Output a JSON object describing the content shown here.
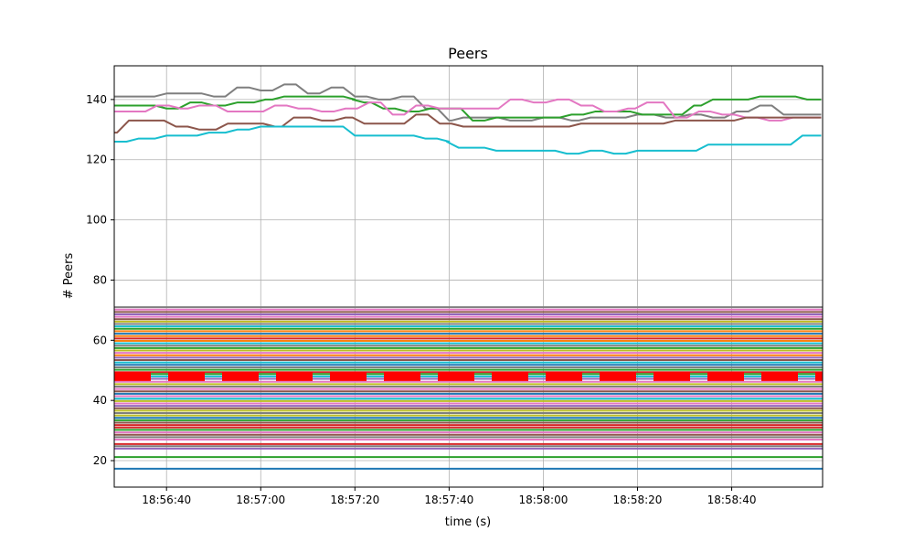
{
  "chart_data": {
    "type": "line",
    "title": "Peers",
    "xlabel": "time (s)",
    "ylabel": "# Peers",
    "xlim": [
      "18:56:28.9",
      "18:58:59.3"
    ],
    "ylim": [
      11.2,
      151.2
    ],
    "grid": true,
    "x_ticks": [
      "18:56:40",
      "18:57:00",
      "18:57:20",
      "18:57:40",
      "18:58:00",
      "18:58:20",
      "18:58:40"
    ],
    "y_ticks": [
      20,
      40,
      60,
      80,
      100,
      120,
      140
    ],
    "upper_series": [
      {
        "color": "#7f7f7f",
        "points": [
          [
            "18:56:29",
            141
          ],
          [
            "18:56:40",
            142
          ],
          [
            "18:56:50",
            141
          ],
          [
            "18:56:55",
            144
          ],
          [
            "18:57:00",
            143
          ],
          [
            "18:57:05",
            145
          ],
          [
            "18:57:10",
            142
          ],
          [
            "18:57:15",
            144
          ],
          [
            "18:57:20",
            141
          ],
          [
            "18:57:25",
            140
          ],
          [
            "18:57:30",
            141
          ],
          [
            "18:57:35",
            137
          ],
          [
            "18:57:40",
            133
          ],
          [
            "18:57:43",
            134
          ],
          [
            "18:57:53",
            133
          ],
          [
            "18:58:00",
            134
          ],
          [
            "18:58:06",
            133
          ],
          [
            "18:58:10",
            134
          ],
          [
            "18:58:20",
            135
          ],
          [
            "18:58:26",
            134
          ],
          [
            "18:58:31",
            135
          ],
          [
            "18:58:36",
            134
          ],
          [
            "18:58:41",
            136
          ],
          [
            "18:58:46",
            138
          ],
          [
            "18:58:51",
            135
          ],
          [
            "18:58:59",
            135
          ]
        ]
      },
      {
        "color": "#2ca02c",
        "points": [
          [
            "18:56:29",
            138
          ],
          [
            "18:56:40",
            137
          ],
          [
            "18:56:45",
            139
          ],
          [
            "18:56:50",
            138
          ],
          [
            "18:56:55",
            139
          ],
          [
            "18:57:01",
            140
          ],
          [
            "18:57:05",
            141
          ],
          [
            "18:57:20",
            140
          ],
          [
            "18:57:22",
            139
          ],
          [
            "18:57:26",
            137
          ],
          [
            "18:57:31",
            136
          ],
          [
            "18:57:36",
            137
          ],
          [
            "18:57:45",
            133
          ],
          [
            "18:57:50",
            134
          ],
          [
            "18:58:06",
            135
          ],
          [
            "18:58:11",
            136
          ],
          [
            "18:58:21",
            135
          ],
          [
            "18:58:32",
            138
          ],
          [
            "18:58:36",
            140
          ],
          [
            "18:58:46",
            141
          ],
          [
            "18:58:56",
            140
          ],
          [
            "18:58:59",
            140
          ]
        ]
      },
      {
        "color": "#e377c2",
        "points": [
          [
            "18:56:29",
            136
          ],
          [
            "18:56:38",
            138
          ],
          [
            "18:56:43",
            137
          ],
          [
            "18:56:47",
            138
          ],
          [
            "18:56:53",
            136
          ],
          [
            "18:57:03",
            138
          ],
          [
            "18:57:08",
            137
          ],
          [
            "18:57:13",
            136
          ],
          [
            "18:57:18",
            137
          ],
          [
            "18:57:23",
            139
          ],
          [
            "18:57:28",
            135
          ],
          [
            "18:57:33",
            138
          ],
          [
            "18:57:38",
            137
          ],
          [
            "18:57:53",
            140
          ],
          [
            "18:57:58",
            139
          ],
          [
            "18:58:03",
            140
          ],
          [
            "18:58:08",
            138
          ],
          [
            "18:58:13",
            136
          ],
          [
            "18:58:18",
            137
          ],
          [
            "18:58:22",
            139
          ],
          [
            "18:58:28",
            134
          ],
          [
            "18:58:33",
            136
          ],
          [
            "18:58:38",
            135
          ],
          [
            "18:58:43",
            134
          ],
          [
            "18:58:48",
            133
          ],
          [
            "18:58:53",
            134
          ],
          [
            "18:58:59",
            134
          ]
        ]
      },
      {
        "color": "#8c564b",
        "points": [
          [
            "18:56:29",
            129
          ],
          [
            "18:56:32",
            133
          ],
          [
            "18:56:42",
            131
          ],
          [
            "18:56:47",
            130
          ],
          [
            "18:56:53",
            132
          ],
          [
            "18:57:03",
            131
          ],
          [
            "18:57:07",
            134
          ],
          [
            "18:57:13",
            133
          ],
          [
            "18:57:18",
            134
          ],
          [
            "18:57:22",
            132
          ],
          [
            "18:57:33",
            135
          ],
          [
            "18:57:38",
            132
          ],
          [
            "18:57:43",
            131
          ],
          [
            "18:58:08",
            132
          ],
          [
            "18:58:28",
            133
          ],
          [
            "18:58:43",
            134
          ],
          [
            "18:58:59",
            134
          ]
        ]
      },
      {
        "color": "#17becf",
        "points": [
          [
            "18:56:29",
            126
          ],
          [
            "18:56:34",
            127
          ],
          [
            "18:56:40",
            128
          ],
          [
            "18:56:49",
            129
          ],
          [
            "18:56:55",
            130
          ],
          [
            "18:57:00",
            131
          ],
          [
            "18:57:20",
            128
          ],
          [
            "18:57:35",
            127
          ],
          [
            "18:57:40",
            126
          ],
          [
            "18:57:42",
            124
          ],
          [
            "18:57:50",
            123
          ],
          [
            "18:58:05",
            122
          ],
          [
            "18:58:10",
            123
          ],
          [
            "18:58:15",
            122
          ],
          [
            "18:58:20",
            123
          ],
          [
            "18:58:35",
            125
          ],
          [
            "18:58:55",
            128
          ],
          [
            "18:58:59",
            128
          ]
        ]
      }
    ],
    "lower_series": [
      {
        "color": "#7f7f7f",
        "value": 71
      },
      {
        "color": "#e377c2",
        "value": 70.2
      },
      {
        "color": "#8c564b",
        "value": 69.4
      },
      {
        "color": "#9467bd",
        "value": 68.6
      },
      {
        "color": "#e377c2",
        "value": 67.8
      },
      {
        "color": "#8c564b",
        "value": 67
      },
      {
        "color": "#bcbd22",
        "value": 66.2
      },
      {
        "color": "#7f7f7f",
        "value": 65.4
      },
      {
        "color": "#17becf",
        "value": 64.6
      },
      {
        "color": "#2ca02c",
        "value": 63.8
      },
      {
        "color": "#ff7f0e",
        "value": 63
      },
      {
        "color": "#1f77b4",
        "value": 62.2
      },
      {
        "color": "#ff7f0e",
        "value": 61.4
      },
      {
        "color": "#d62728",
        "value": 60.6
      },
      {
        "color": "#ff7f0e",
        "value": 59.8
      },
      {
        "color": "#17becf",
        "value": 59
      },
      {
        "color": "#7f7f7f",
        "value": 58.2
      },
      {
        "color": "#2ca02c",
        "value": 57.4
      },
      {
        "color": "#bcbd22",
        "value": 56.6
      },
      {
        "color": "#e377c2",
        "value": 55.8
      },
      {
        "color": "#ff7f0e",
        "value": 55
      },
      {
        "color": "#9467bd",
        "value": 54.2
      },
      {
        "color": "#8c564b",
        "value": 53.4
      },
      {
        "color": "#17becf",
        "value": 52.6
      },
      {
        "color": "#1f77b4",
        "value": 51.8
      },
      {
        "color": "#7f7f7f",
        "value": 51
      },
      {
        "color": "#2ca02c",
        "value": 50.2
      },
      {
        "color": "#d62728",
        "value": 49.4
      },
      {
        "color": "#2ca02c",
        "value": 48.8
      },
      {
        "color": "#17becf",
        "value": 48
      },
      {
        "color": "#9467bd",
        "value": 47.2
      },
      {
        "color": "#e377c2",
        "value": 46.2
      },
      {
        "color": "#bcbd22",
        "value": 45.4
      },
      {
        "color": "#7f7f7f",
        "value": 44.6
      },
      {
        "color": "#e377c2",
        "value": 43.8
      },
      {
        "color": "#8c564b",
        "value": 43
      },
      {
        "color": "#1f77b4",
        "value": 42.2
      },
      {
        "color": "#e377c2",
        "value": 41.4
      },
      {
        "color": "#17becf",
        "value": 40.6
      },
      {
        "color": "#bcbd22",
        "value": 39.8
      },
      {
        "color": "#e377c2",
        "value": 39
      },
      {
        "color": "#9467bd",
        "value": 38.2
      },
      {
        "color": "#8c564b",
        "value": 37.4
      },
      {
        "color": "#bcbd22",
        "value": 36.6
      },
      {
        "color": "#7f7f7f",
        "value": 35.8
      },
      {
        "color": "#bcbd22",
        "value": 35
      },
      {
        "color": "#1f77b4",
        "value": 34.2
      },
      {
        "color": "#2ca02c",
        "value": 33.4
      },
      {
        "color": "#8c564b",
        "value": 32.6
      },
      {
        "color": "#d62728",
        "value": 31.8
      },
      {
        "color": "#d62728",
        "value": 31
      },
      {
        "color": "#2ca02c",
        "value": 30.2
      },
      {
        "color": "#e377c2",
        "value": 29.4
      },
      {
        "color": "#8c564b",
        "value": 28.6
      },
      {
        "color": "#7f7f7f",
        "value": 27.8
      },
      {
        "color": "#e377c2",
        "value": 27
      },
      {
        "color": "#d62728",
        "value": 25.5
      },
      {
        "color": "#7f7f7f",
        "value": 24.8
      },
      {
        "color": "#9467bd",
        "value": 24
      },
      {
        "color": "#2ca02c",
        "value": 21.2
      },
      {
        "color": "#1f77b4",
        "value": 17.3
      }
    ],
    "dashed_series": {
      "color": "#ff0000",
      "value": 48
    }
  }
}
